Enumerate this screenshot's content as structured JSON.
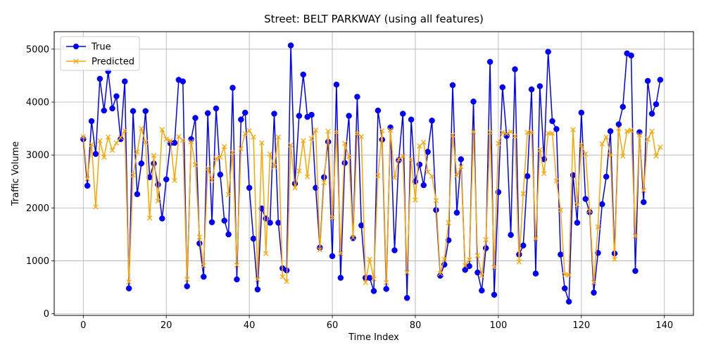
{
  "chart_data": {
    "type": "line",
    "title": "Street: BELT PARKWAY (using all features)",
    "xlabel": "Time Index",
    "ylabel": "Traffic Volume",
    "xlim": [
      -7,
      147
    ],
    "ylim": [
      -30,
      5330
    ],
    "xticks": [
      0,
      20,
      40,
      60,
      80,
      100,
      120,
      140
    ],
    "yticks": [
      0,
      1000,
      2000,
      3000,
      4000,
      5000
    ],
    "grid": true,
    "legend_position": "upper-left",
    "series": [
      {
        "name": "True",
        "color": "#0000ff",
        "marker": "circle",
        "values": [
          3300,
          2420,
          3640,
          3020,
          4440,
          3840,
          4580,
          3880,
          4110,
          3300,
          4390,
          480,
          3830,
          2260,
          2840,
          3830,
          2580,
          2840,
          2440,
          1800,
          2540,
          3220,
          3230,
          4420,
          4390,
          520,
          3300,
          3700,
          1330,
          700,
          3790,
          1730,
          3880,
          2630,
          1760,
          1500,
          4270,
          650,
          3670,
          3800,
          2380,
          1420,
          460,
          1990,
          1800,
          1720,
          3780,
          1720,
          860,
          820,
          5070,
          2460,
          3740,
          4520,
          3720,
          3760,
          2380,
          1250,
          2580,
          3250,
          1090,
          4330,
          680,
          2850,
          3740,
          1430,
          4100,
          1670,
          680,
          680,
          430,
          3840,
          3290,
          470,
          3520,
          1200,
          2900,
          3780,
          300,
          3670,
          2500,
          2820,
          2430,
          3060,
          3650,
          1960,
          720,
          930,
          1390,
          4320,
          1910,
          2920,
          830,
          900,
          4010,
          780,
          440,
          1240,
          4760,
          360,
          2300,
          4280,
          3360,
          1490,
          4620,
          1120,
          1290,
          2600,
          4240,
          760,
          4300,
          2920,
          4950,
          3640,
          3490,
          1120,
          480,
          230,
          2620,
          1720,
          3800,
          2170,
          1920,
          400,
          1150,
          2070,
          2590,
          3450,
          1140,
          3580,
          3910,
          4920,
          4880,
          810,
          3430,
          2110,
          4400,
          3780,
          3960,
          4420
        ]
      },
      {
        "name": "Predicted",
        "color": "#ffa500",
        "marker": "x",
        "values": [
          3350,
          2550,
          3200,
          2020,
          3270,
          2960,
          3340,
          3090,
          3230,
          3330,
          3460,
          600,
          2620,
          3060,
          3500,
          3240,
          1810,
          2990,
          2130,
          3480,
          3300,
          3270,
          2520,
          3350,
          3280,
          650,
          3250,
          2820,
          1450,
          910,
          2750,
          2520,
          2930,
          2960,
          3160,
          2250,
          3050,
          920,
          3120,
          3400,
          3460,
          3340,
          650,
          3230,
          1140,
          3020,
          2780,
          3340,
          700,
          610,
          3190,
          2380,
          2700,
          3270,
          2590,
          3310,
          3470,
          1210,
          2480,
          3450,
          1820,
          3430,
          1140,
          3220,
          2970,
          1440,
          3410,
          3350,
          590,
          1030,
          660,
          2610,
          3460,
          590,
          3470,
          2570,
          2920,
          2980,
          780,
          2920,
          2150,
          3170,
          3240,
          2680,
          2600,
          2140,
          760,
          1030,
          1720,
          3380,
          2610,
          2780,
          910,
          1020,
          3440,
          1100,
          720,
          1400,
          3430,
          880,
          3220,
          3430,
          3400,
          3440,
          3360,
          980,
          2270,
          3430,
          3430,
          1420,
          3100,
          2650,
          3410,
          3410,
          2510,
          1960,
          740,
          730,
          3480,
          2060,
          3190,
          3020,
          1950,
          590,
          1640,
          3210,
          3340,
          3000,
          1030,
          3500,
          2980,
          3450,
          3470,
          1470,
          3380,
          2330,
          3300,
          3450,
          2980,
          3150
        ]
      }
    ]
  }
}
